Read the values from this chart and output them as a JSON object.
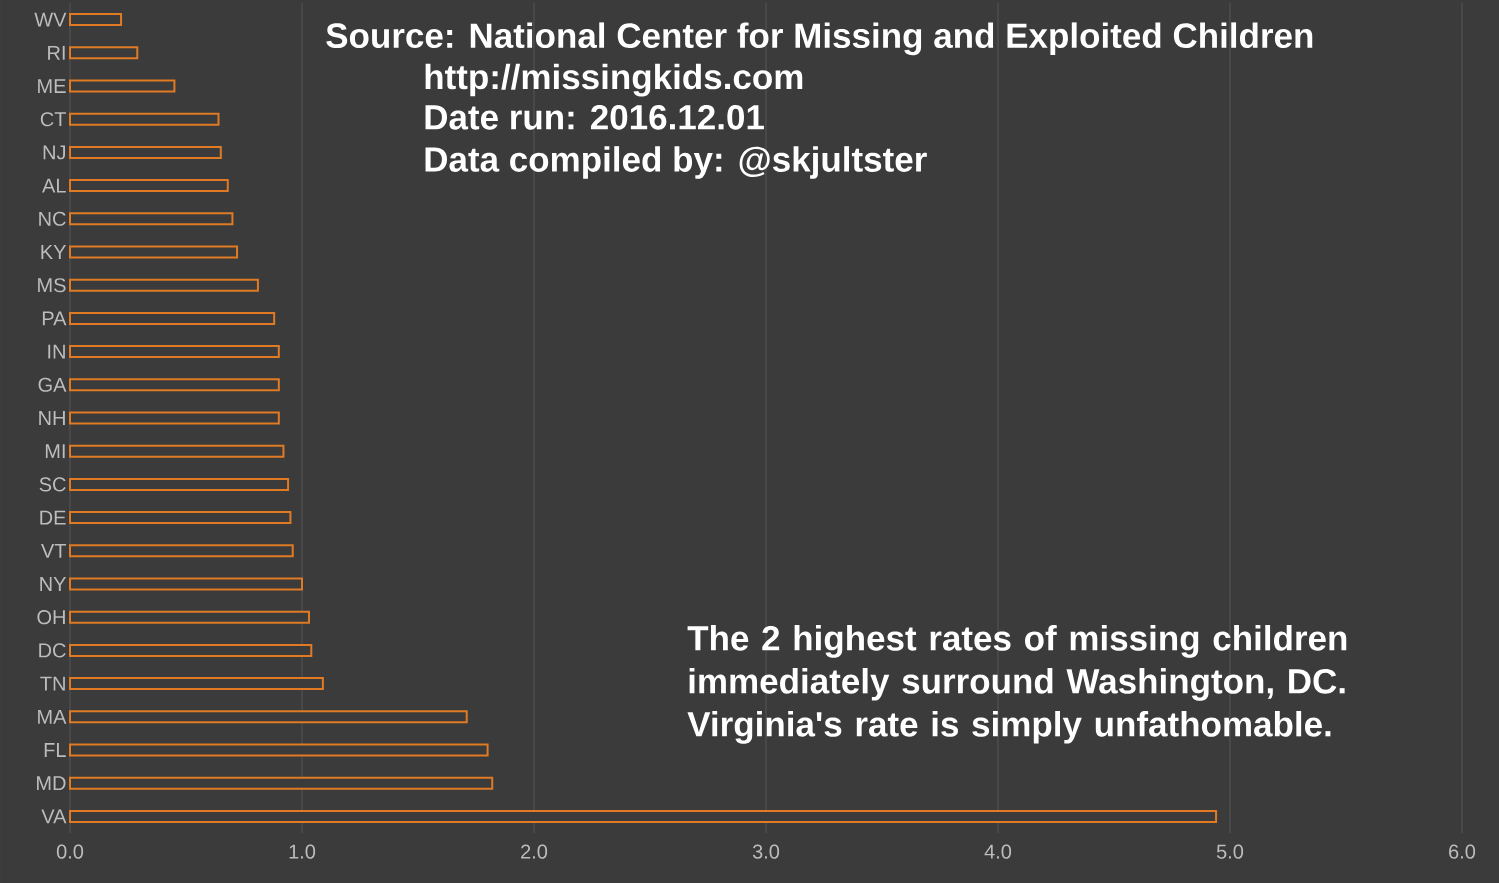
{
  "chart_data": {
    "type": "bar",
    "orientation": "horizontal",
    "categories": [
      "WV",
      "RI",
      "ME",
      "CT",
      "NJ",
      "AL",
      "NC",
      "KY",
      "MS",
      "PA",
      "IN",
      "GA",
      "NH",
      "MI",
      "SC",
      "DE",
      "VT",
      "NY",
      "OH",
      "DC",
      "TN",
      "MA",
      "FL",
      "MD",
      "VA"
    ],
    "values": [
      0.22,
      0.29,
      0.45,
      0.64,
      0.65,
      0.68,
      0.7,
      0.72,
      0.81,
      0.88,
      0.9,
      0.9,
      0.9,
      0.92,
      0.94,
      0.95,
      0.96,
      1.0,
      1.03,
      1.04,
      1.09,
      1.71,
      1.8,
      1.82,
      4.94
    ],
    "color": "#e07b24",
    "xlim": [
      0,
      6
    ],
    "xticks": [
      {
        "value": 0,
        "label": "0.0"
      },
      {
        "value": 1,
        "label": "1.0"
      },
      {
        "value": 2,
        "label": "2.0"
      },
      {
        "value": 3,
        "label": "3.0"
      },
      {
        "value": 4,
        "label": "4.0"
      },
      {
        "value": 5,
        "label": "5.0"
      },
      {
        "value": 6,
        "label": "6.0"
      }
    ],
    "grid": "x",
    "annotations": [
      "Source: National Center for Missing and Exploited Children",
      "http://missingkids.com",
      "Date run: 2016.12.01",
      "Data compiled by: @skjultster",
      "The 2 highest rates of missing children immediately surround Washington, DC. Virginia's rate is simply unfathomable."
    ]
  }
}
